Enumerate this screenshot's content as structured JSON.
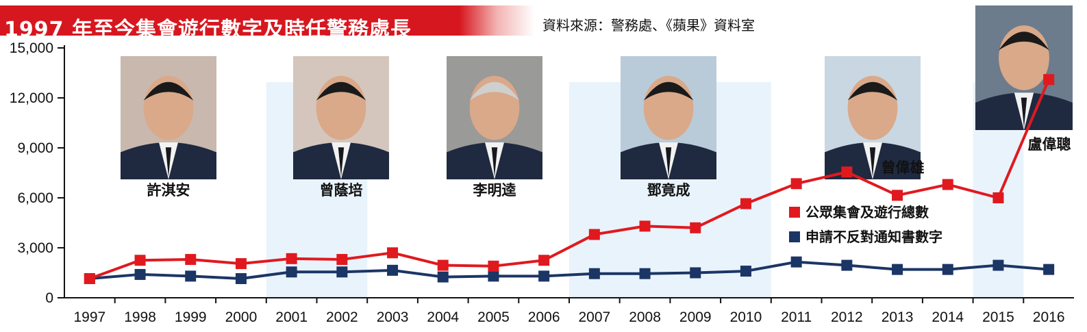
{
  "title": "1997 年至今集會遊行數字及時任警務處長",
  "source": "資料來源：警務處、《蘋果》資料室",
  "commissioners": [
    {
      "name": "許淇安",
      "from": "1997",
      "to": "2001"
    },
    {
      "name": "曾蔭培",
      "from": "2001",
      "to": "2003"
    },
    {
      "name": "李明逵",
      "from": "2003",
      "to": "2007"
    },
    {
      "name": "鄧竟成",
      "from": "2007",
      "to": "2011"
    },
    {
      "name": "曾偉雄",
      "from": "2011",
      "to": "2015"
    },
    {
      "name": "盧偉聰",
      "from": "2015",
      "to": "2016"
    }
  ],
  "colors": {
    "red_series": "#e0191f",
    "blue_series": "#1b3565",
    "title_bg": "#d7171f",
    "term_band": "#e9f3fb"
  },
  "chart_data": {
    "type": "line",
    "categories": [
      "1997",
      "1998",
      "1999",
      "2000",
      "2001",
      "2002",
      "2003",
      "2004",
      "2005",
      "2006",
      "2007",
      "2008",
      "2009",
      "2010",
      "2011",
      "2012",
      "2013",
      "2014",
      "2015",
      "2016"
    ],
    "ylim": [
      0,
      15000
    ],
    "yticks": [
      0,
      3000,
      6000,
      9000,
      12000,
      15000
    ],
    "ytick_labels": [
      "0",
      "3,000",
      "6,000",
      "9,000",
      "12,000",
      "15,000"
    ],
    "grid": false,
    "legend_position": "right",
    "series": [
      {
        "name": "公眾集會及遊行總數",
        "values": [
          1150,
          2250,
          2300,
          2050,
          2350,
          2300,
          2700,
          1950,
          1900,
          2250,
          3800,
          4300,
          4200,
          5650,
          6850,
          7550,
          6150,
          6800,
          6000,
          13100
        ]
      },
      {
        "name": "申請不反對通知書數字",
        "values": [
          1150,
          1400,
          1300,
          1150,
          1550,
          1550,
          1650,
          1250,
          1300,
          1300,
          1450,
          1450,
          1500,
          1600,
          2150,
          1950,
          1700,
          1700,
          1950,
          1700
        ]
      }
    ]
  }
}
